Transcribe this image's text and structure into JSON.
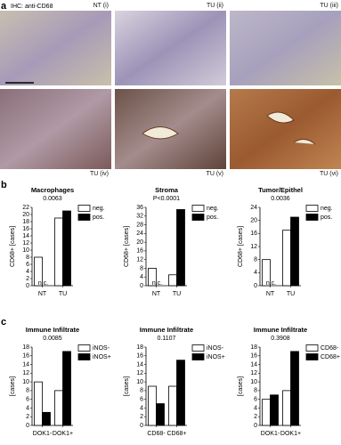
{
  "panel_a": {
    "label": "a",
    "title": "IHC: anti-CD68",
    "images": [
      "NT (i)",
      "TU (ii)",
      "TU (iii)",
      "TU (iv)",
      "TU (v)",
      "TU (vi)"
    ]
  },
  "panel_b": {
    "label": "b"
  },
  "panel_c": {
    "label": "c"
  },
  "chart_data": [
    {
      "type": "bar",
      "title": "Macrophages",
      "subtitle": "0.0063",
      "y_label": "CD68+ [cases]",
      "categories": [
        "NT",
        "TU"
      ],
      "series": [
        {
          "name": "neg.",
          "color": "#ffffff",
          "values": [
            8,
            19
          ]
        },
        {
          "name": "pos.",
          "color": "#000000",
          "values": [
            0,
            21
          ],
          "value_labels": [
            "n.c.",
            null
          ]
        }
      ],
      "ylim": [
        0,
        22
      ],
      "yticks": [
        0,
        2,
        4,
        6,
        8,
        10,
        12,
        14,
        16,
        18,
        20,
        22
      ]
    },
    {
      "type": "bar",
      "title": "Stroma",
      "subtitle": "P<0.0001",
      "y_label": "CD68+ [cases]",
      "categories": [
        "NT",
        "TU"
      ],
      "series": [
        {
          "name": "neg.",
          "color": "#ffffff",
          "values": [
            8,
            5
          ]
        },
        {
          "name": "pos.",
          "color": "#000000",
          "values": [
            0,
            35
          ],
          "value_labels": [
            "n.c.",
            null
          ]
        }
      ],
      "ylim": [
        0,
        36
      ],
      "yticks": [
        0,
        4,
        8,
        12,
        16,
        20,
        24,
        28,
        32,
        36
      ]
    },
    {
      "type": "bar",
      "title": "Tumor/Epithel",
      "subtitle": "0.0036",
      "y_label": "CD68+ [cases]",
      "categories": [
        "NT",
        "TU"
      ],
      "series": [
        {
          "name": "neg.",
          "color": "#ffffff",
          "values": [
            8,
            17
          ]
        },
        {
          "name": "pos.",
          "color": "#000000",
          "values": [
            0,
            21
          ],
          "value_labels": [
            "n.c.",
            null
          ]
        }
      ],
      "ylim": [
        0,
        24
      ],
      "yticks": [
        0,
        4,
        8,
        12,
        16,
        20,
        24
      ]
    },
    {
      "type": "bar",
      "title": "Immune Infiltrate",
      "subtitle": "0.0085",
      "y_label": "[cases]",
      "categories": [
        "DOK1-",
        "DOK1+"
      ],
      "series": [
        {
          "name": "iNOS-",
          "color": "#ffffff",
          "values": [
            10,
            8
          ]
        },
        {
          "name": "iNOS+",
          "color": "#000000",
          "values": [
            3,
            17
          ]
        }
      ],
      "ylim": [
        0,
        18
      ],
      "yticks": [
        0,
        2,
        4,
        6,
        8,
        10,
        12,
        14,
        16,
        18
      ]
    },
    {
      "type": "bar",
      "title": "Immune Infiltrate",
      "subtitle": "0.1107",
      "y_label": "[cases]",
      "categories": [
        "CD68-",
        "CD68+"
      ],
      "series": [
        {
          "name": "iNOS-",
          "color": "#ffffff",
          "values": [
            9,
            9
          ]
        },
        {
          "name": "iNOS+",
          "color": "#000000",
          "values": [
            5,
            15
          ]
        }
      ],
      "ylim": [
        0,
        18
      ],
      "yticks": [
        0,
        2,
        4,
        6,
        8,
        10,
        12,
        14,
        16,
        18
      ]
    },
    {
      "type": "bar",
      "title": "Immune Infiltrate",
      "subtitle": "0.3908",
      "y_label": "[cases]",
      "categories": [
        "DOK1-",
        "DOK1+"
      ],
      "series": [
        {
          "name": "CD68-",
          "color": "#ffffff",
          "values": [
            6,
            8
          ]
        },
        {
          "name": "CD68+",
          "color": "#000000",
          "values": [
            7,
            17
          ]
        }
      ],
      "ylim": [
        0,
        18
      ],
      "yticks": [
        0,
        2,
        4,
        6,
        8,
        10,
        12,
        14,
        16,
        18
      ]
    }
  ]
}
